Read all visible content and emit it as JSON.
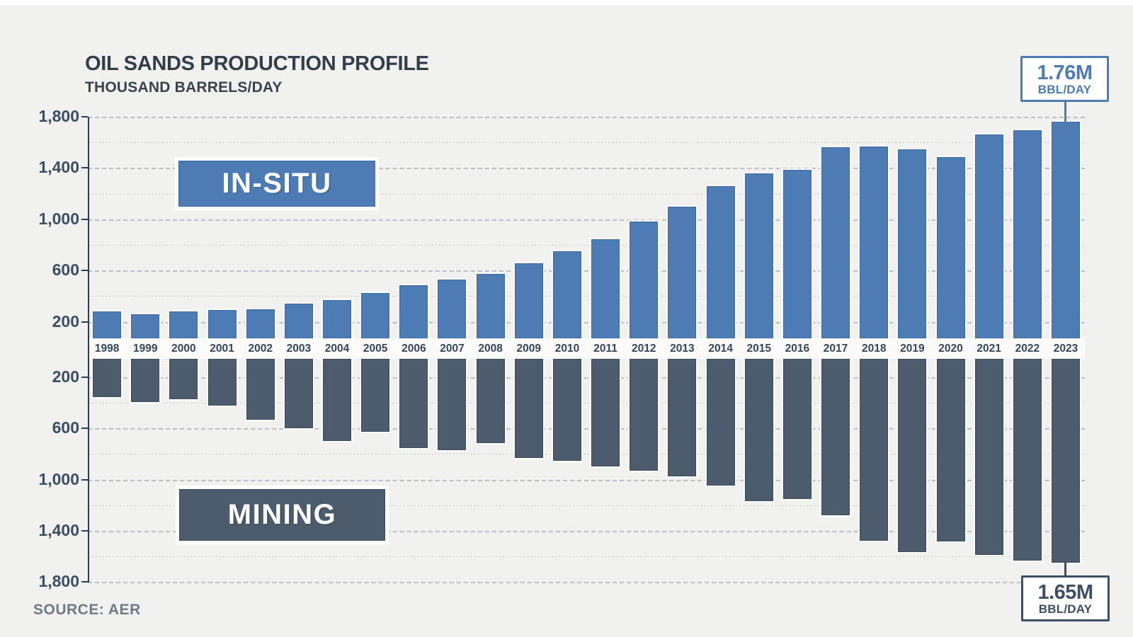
{
  "header": {
    "title": "OIL SANDS PRODUCTION PROFILE",
    "subtitle": "THOUSAND BARRELS/DAY"
  },
  "footer": {
    "source": "SOURCE: AER"
  },
  "annotations": {
    "insitu_label": "IN-SITU",
    "mining_label": "MINING",
    "callout_top": {
      "value": "1.76M",
      "unit": "BBL/DAY"
    },
    "callout_bottom": {
      "value": "1.65M",
      "unit": "BBL/DAY"
    }
  },
  "colors": {
    "insitu_fill": "#4d7cb4",
    "insitu_border": "#3a69a3",
    "mining_fill": "#4d5c6d",
    "mining_border": "#3b4a5a",
    "background": "#f1f1ef",
    "axis": "#2c3c55"
  },
  "chart_data": {
    "type": "bar",
    "title": "OIL SANDS PRODUCTION PROFILE",
    "units_label": "THOUSAND BARRELS/DAY",
    "layout_hint": "mirrored bar chart: IN-SITU extends upward, MINING extends downward from shared central year axis; dashed horizontal grid every 200",
    "categories": [
      "1998",
      "1999",
      "2000",
      "2001",
      "2002",
      "2003",
      "2004",
      "2005",
      "2006",
      "2007",
      "2008",
      "2009",
      "2010",
      "2011",
      "2012",
      "2013",
      "2014",
      "2015",
      "2016",
      "2017",
      "2018",
      "2019",
      "2020",
      "2021",
      "2022",
      "2023"
    ],
    "series": [
      {
        "name": "IN-SITU",
        "values": [
          280,
          260,
          280,
          290,
          295,
          340,
          370,
          425,
          485,
          530,
          575,
          655,
          750,
          845,
          985,
          1100,
          1260,
          1360,
          1385,
          1560,
          1570,
          1545,
          1485,
          1660,
          1695,
          1760
        ]
      },
      {
        "name": "MINING",
        "values": [
          355,
          395,
          370,
          420,
          535,
          600,
          700,
          625,
          755,
          770,
          715,
          830,
          855,
          895,
          930,
          975,
          1045,
          1170,
          1150,
          1280,
          1475,
          1565,
          1485,
          1590,
          1630,
          1650
        ]
      }
    ],
    "yticks": [
      200,
      600,
      1000,
      1400,
      1800
    ],
    "gridline_step": 200,
    "ylim": [
      0,
      1800
    ],
    "annotations": [
      {
        "target": "IN-SITU 2023",
        "text": "1.76M BBL/DAY"
      },
      {
        "target": "MINING 2023",
        "text": "1.65M BBL/DAY"
      }
    ],
    "source": "AER"
  }
}
